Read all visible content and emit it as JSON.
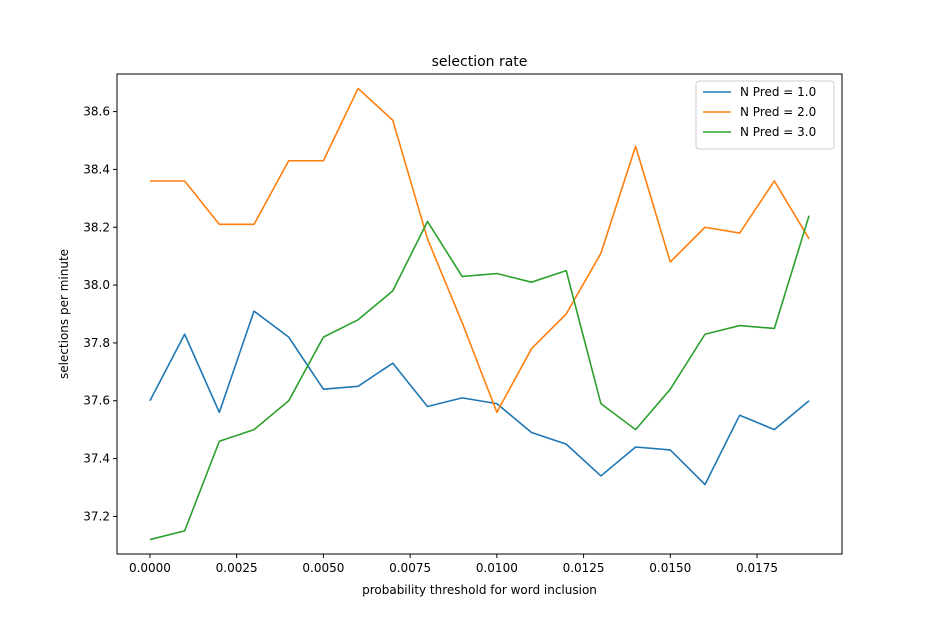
{
  "chart_data": {
    "type": "line",
    "title": "selection rate",
    "xlabel": "probability threshold for word inclusion",
    "ylabel": "selections per minute",
    "xlim": [
      -0.00095,
      0.01995
    ],
    "ylim": [
      37.07,
      38.73
    ],
    "xticks": [
      0.0,
      0.0025,
      0.005,
      0.0075,
      0.01,
      0.0125,
      0.015,
      0.0175
    ],
    "xtick_labels": [
      "0.0000",
      "0.0025",
      "0.0050",
      "0.0075",
      "0.0100",
      "0.0125",
      "0.0150",
      "0.0175"
    ],
    "yticks": [
      37.2,
      37.4,
      37.6,
      37.8,
      38.0,
      38.2,
      38.4,
      38.6
    ],
    "ytick_labels": [
      "37.2",
      "37.4",
      "37.6",
      "37.8",
      "38.0",
      "38.2",
      "38.4",
      "38.6"
    ],
    "grid": false,
    "legend_position": "upper right",
    "x": [
      0.0,
      0.001,
      0.002,
      0.003,
      0.004,
      0.005,
      0.006,
      0.007,
      0.008,
      0.009,
      0.01,
      0.011,
      0.012,
      0.013,
      0.014,
      0.015,
      0.016,
      0.017,
      0.018,
      0.019
    ],
    "series": [
      {
        "name": "N Pred = 1.0",
        "color": "#1f77b4",
        "values": [
          37.6,
          37.83,
          37.56,
          37.91,
          37.82,
          37.64,
          37.65,
          37.73,
          37.58,
          37.61,
          37.59,
          37.49,
          37.45,
          37.34,
          37.44,
          37.43,
          37.31,
          37.55,
          37.5,
          37.6
        ]
      },
      {
        "name": "N Pred = 2.0",
        "color": "#ff7f0e",
        "values": [
          38.36,
          38.36,
          38.21,
          38.21,
          38.43,
          38.43,
          38.68,
          38.57,
          38.16,
          37.87,
          37.56,
          37.78,
          37.9,
          38.11,
          38.48,
          38.08,
          38.2,
          38.18,
          38.36,
          38.16
        ]
      },
      {
        "name": "N Pred = 3.0",
        "color": "#2ca02c",
        "values": [
          37.12,
          37.15,
          37.46,
          37.5,
          37.6,
          37.82,
          37.88,
          37.98,
          38.22,
          38.03,
          38.04,
          38.01,
          38.05,
          37.59,
          37.5,
          37.64,
          37.83,
          37.86,
          37.85,
          38.24
        ]
      }
    ]
  }
}
